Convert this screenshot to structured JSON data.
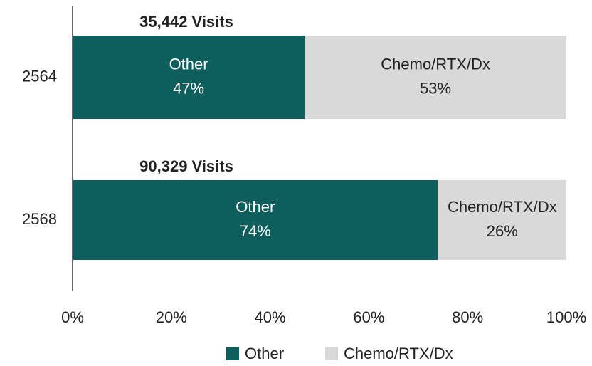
{
  "chart_data": {
    "type": "stacked-bar-horizontal",
    "categories": [
      "2564",
      "2568"
    ],
    "annotations": [
      "35,442 Visits",
      "90,329 Visits"
    ],
    "series": [
      {
        "name": "Other",
        "color": "#0f5e5e",
        "values": [
          47,
          74
        ],
        "value_labels": [
          "47%",
          "74%"
        ]
      },
      {
        "name": "Chemo/RTX/Dx",
        "color": "#d9d9d9",
        "values": [
          53,
          26
        ],
        "value_labels": [
          "53%",
          "26%"
        ]
      }
    ],
    "xlim": [
      0,
      100
    ],
    "xticks": [
      {
        "value": 0,
        "label": "0%"
      },
      {
        "value": 20,
        "label": "20%"
      },
      {
        "value": 40,
        "label": "40%"
      },
      {
        "value": 60,
        "label": "60%"
      },
      {
        "value": 80,
        "label": "80%"
      },
      {
        "value": 100,
        "label": "100%"
      }
    ],
    "grid": false
  }
}
